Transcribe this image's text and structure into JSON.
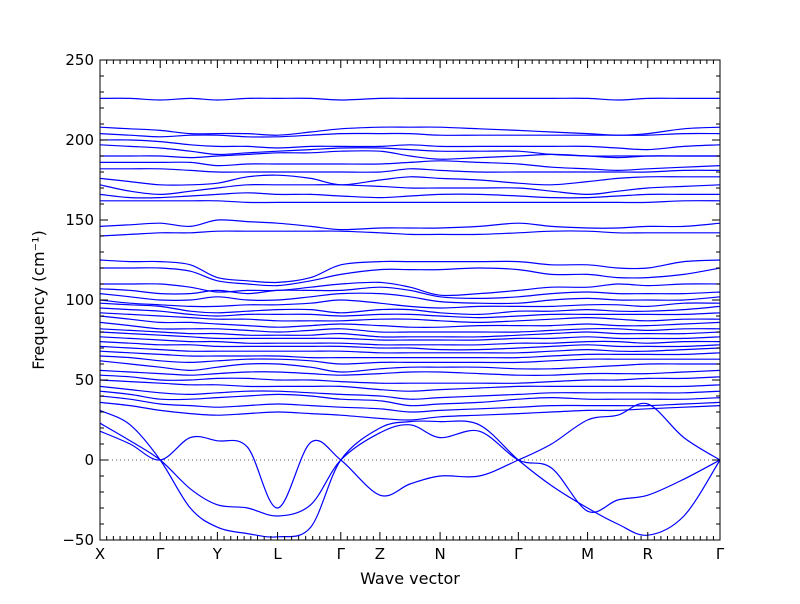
{
  "chart_data": {
    "type": "line",
    "title": "",
    "xlabel": "Wave vector",
    "ylabel": "Frequency (cm⁻¹)",
    "ylim": [
      -50,
      250
    ],
    "yticks": [
      -50,
      0,
      50,
      100,
      150,
      200,
      250
    ],
    "grid": false,
    "legend": "none",
    "line_color": "#0000ff",
    "zero_line_color": "#5a5a5a",
    "x_path": [
      {
        "label": "X",
        "position": 0.0
      },
      {
        "label": "Γ",
        "position": 1.0
      },
      {
        "label": "Y",
        "position": 1.95
      },
      {
        "label": "L",
        "position": 2.95
      },
      {
        "label": "Γ",
        "position": 4.0
      },
      {
        "label": "Z",
        "position": 4.65
      },
      {
        "label": "N",
        "position": 5.65
      },
      {
        "label": "Γ",
        "position": 6.95
      },
      {
        "label": "M",
        "position": 8.1
      },
      {
        "label": "R",
        "position": 9.1
      },
      {
        "label": "Γ",
        "position": 10.3
      }
    ],
    "x_samples": [
      0,
      0.5,
      1.0,
      1.5,
      1.95,
      2.45,
      2.95,
      3.5,
      4.0,
      4.65,
      5.15,
      5.65,
      6.3,
      6.95,
      7.5,
      8.1,
      8.6,
      9.1,
      9.7,
      10.3
    ],
    "acoustic_branches": [
      {
        "values": [
          31,
          22,
          0,
          -30,
          -42,
          -46,
          -48,
          -42,
          0,
          20,
          24,
          24,
          22,
          0,
          -16,
          -30,
          -40,
          -47,
          -35,
          0
        ]
      },
      {
        "values": [
          23,
          12,
          0,
          -18,
          -28,
          -30,
          -35,
          -28,
          0,
          17,
          22,
          14,
          18,
          0,
          -5,
          -32,
          -25,
          -22,
          -12,
          0
        ]
      },
      {
        "values": [
          18,
          10,
          0,
          14,
          12,
          8,
          -30,
          11,
          0,
          -22,
          -15,
          -10,
          -10,
          0,
          10,
          25,
          28,
          35,
          14,
          0
        ]
      }
    ],
    "optical_bands": [
      {
        "values": [
          226,
          226,
          225,
          226,
          225,
          226,
          226,
          226,
          225,
          226,
          226,
          226,
          226,
          226,
          226,
          226,
          225,
          226,
          226,
          226
        ]
      },
      {
        "values": [
          208,
          207,
          206,
          204,
          204,
          204,
          203,
          205,
          207,
          208,
          208,
          208,
          207,
          206,
          205,
          204,
          203,
          204,
          207,
          208
        ]
      },
      {
        "values": [
          204,
          203,
          202,
          203,
          203,
          202,
          202,
          203,
          204,
          204,
          204,
          203,
          203,
          203,
          203,
          203,
          203,
          203,
          204,
          204
        ]
      },
      {
        "values": [
          200,
          200,
          199,
          197,
          196,
          196,
          195,
          196,
          196,
          196,
          197,
          196,
          196,
          196,
          196,
          196,
          195,
          194,
          196,
          197
        ]
      },
      {
        "values": [
          197,
          196,
          195,
          193,
          191,
          192,
          193,
          194,
          195,
          195,
          194,
          193,
          193,
          193,
          191,
          190,
          190,
          190,
          190,
          190
        ]
      },
      {
        "values": [
          190,
          190,
          190,
          189,
          190,
          191,
          192,
          192,
          193,
          193,
          190,
          188,
          189,
          190,
          191,
          190,
          189,
          190,
          190,
          190
        ]
      },
      {
        "values": [
          186,
          186,
          186,
          186,
          184,
          185,
          185,
          185,
          185,
          185,
          186,
          187,
          186,
          185,
          183,
          182,
          181,
          182,
          183,
          184
        ]
      },
      {
        "values": [
          182,
          182,
          182,
          181,
          180,
          180,
          180,
          180,
          180,
          180,
          182,
          181,
          180,
          180,
          180,
          180,
          180,
          180,
          181,
          181
        ]
      },
      {
        "values": [
          176,
          174,
          172,
          172,
          173,
          177,
          178,
          176,
          172,
          175,
          177,
          176,
          175,
          173,
          172,
          174,
          176,
          177,
          177,
          177
        ]
      },
      {
        "values": [
          172,
          168,
          166,
          168,
          170,
          172,
          172,
          172,
          172,
          171,
          170,
          170,
          170,
          170,
          168,
          166,
          168,
          170,
          171,
          172
        ]
      },
      {
        "values": [
          166,
          164,
          164,
          165,
          166,
          167,
          166,
          166,
          165,
          164,
          165,
          166,
          166,
          165,
          164,
          164,
          165,
          166,
          166,
          166
        ]
      },
      {
        "values": [
          162,
          162,
          162,
          162,
          162,
          161,
          161,
          161,
          161,
          161,
          161,
          161,
          161,
          161,
          161,
          161,
          161,
          161,
          162,
          162
        ]
      },
      {
        "values": [
          146,
          147,
          148,
          146,
          150,
          149,
          148,
          146,
          144,
          145,
          145,
          145,
          146,
          148,
          146,
          145,
          145,
          146,
          146,
          148
        ]
      },
      {
        "values": [
          140,
          141,
          142,
          142,
          143,
          143,
          143,
          143,
          143,
          142,
          141,
          141,
          141,
          142,
          143,
          143,
          142,
          142,
          142,
          142
        ]
      },
      {
        "values": [
          125,
          124,
          124,
          122,
          114,
          112,
          111,
          114,
          122,
          124,
          124,
          124,
          124,
          124,
          122,
          122,
          120,
          120,
          124,
          125
        ]
      },
      {
        "values": [
          120,
          120,
          120,
          118,
          112,
          110,
          109,
          112,
          116,
          119,
          119,
          119,
          120,
          119,
          116,
          116,
          114,
          114,
          116,
          120
        ]
      },
      {
        "values": [
          110,
          110,
          110,
          108,
          105,
          106,
          106,
          108,
          110,
          111,
          108,
          103,
          104,
          106,
          108,
          108,
          110,
          109,
          110,
          110
        ]
      },
      {
        "values": [
          107,
          106,
          104,
          104,
          106,
          104,
          106,
          106,
          106,
          108,
          106,
          102,
          101,
          102,
          104,
          105,
          104,
          104,
          104,
          105
        ]
      },
      {
        "values": [
          104,
          102,
          100,
          100,
          102,
          100,
          100,
          102,
          104,
          104,
          102,
          99,
          98,
          98,
          100,
          101,
          100,
          100,
          100,
          102
        ]
      },
      {
        "values": [
          100,
          98,
          97,
          96,
          96,
          97,
          97,
          98,
          100,
          98,
          96,
          95,
          96,
          96,
          96,
          97,
          97,
          96,
          98,
          98
        ]
      },
      {
        "values": [
          98,
          97,
          96,
          93,
          92,
          93,
          94,
          94,
          92,
          94,
          94,
          92,
          91,
          93,
          93,
          94,
          93,
          93,
          94,
          96
        ]
      },
      {
        "values": [
          95,
          94,
          93,
          91,
          90,
          91,
          91,
          91,
          90,
          91,
          91,
          90,
          89,
          90,
          91,
          91,
          91,
          91,
          91,
          92
        ]
      },
      {
        "values": [
          92,
          91,
          90,
          89,
          88,
          88,
          87,
          87,
          87,
          88,
          88,
          87,
          86,
          87,
          88,
          89,
          88,
          87,
          88,
          88
        ]
      },
      {
        "values": [
          90,
          88,
          86,
          86,
          85,
          84,
          83,
          84,
          85,
          84,
          83,
          83,
          84,
          84,
          84,
          85,
          84,
          84,
          85,
          86
        ]
      },
      {
        "values": [
          86,
          84,
          82,
          82,
          82,
          81,
          80,
          81,
          82,
          80,
          80,
          80,
          80,
          80,
          81,
          82,
          82,
          81,
          82,
          82
        ]
      },
      {
        "values": [
          82,
          81,
          80,
          79,
          79,
          78,
          78,
          78,
          79,
          77,
          77,
          77,
          77,
          78,
          79,
          80,
          79,
          79,
          79,
          80
        ]
      },
      {
        "values": [
          80,
          79,
          78,
          77,
          76,
          76,
          76,
          76,
          76,
          75,
          75,
          75,
          75,
          76,
          76,
          77,
          76,
          76,
          76,
          77
        ]
      },
      {
        "values": [
          77,
          76,
          75,
          74,
          74,
          73,
          73,
          73,
          73,
          72,
          72,
          72,
          72,
          73,
          73,
          74,
          74,
          73,
          74,
          74
        ]
      },
      {
        "values": [
          74,
          73,
          72,
          72,
          71,
          71,
          71,
          71,
          71,
          70,
          70,
          69,
          69,
          70,
          71,
          72,
          71,
          71,
          71,
          72
        ]
      },
      {
        "values": [
          71,
          70,
          69,
          68,
          68,
          68,
          68,
          68,
          68,
          67,
          67,
          67,
          67,
          67,
          68,
          69,
          68,
          68,
          69,
          70
        ]
      },
      {
        "values": [
          68,
          67,
          66,
          65,
          65,
          65,
          65,
          64,
          64,
          64,
          64,
          64,
          64,
          64,
          65,
          66,
          66,
          66,
          66,
          67
        ]
      },
      {
        "values": [
          65,
          64,
          62,
          61,
          62,
          63,
          63,
          62,
          60,
          61,
          61,
          61,
          61,
          61,
          62,
          63,
          63,
          63,
          63,
          63
        ]
      },
      {
        "values": [
          62,
          60,
          58,
          56,
          58,
          60,
          60,
          58,
          55,
          57,
          58,
          58,
          58,
          57,
          57,
          58,
          59,
          60,
          60,
          60
        ]
      },
      {
        "values": [
          56,
          55,
          54,
          53,
          54,
          55,
          55,
          54,
          53,
          54,
          55,
          55,
          54,
          53,
          53,
          54,
          54,
          54,
          55,
          56
        ]
      },
      {
        "values": [
          53,
          52,
          50,
          50,
          51,
          51,
          50,
          50,
          49,
          48,
          48,
          48,
          48,
          48,
          49,
          50,
          50,
          51,
          51,
          52
        ]
      },
      {
        "values": [
          50,
          49,
          48,
          47,
          47,
          46,
          46,
          46,
          46,
          44,
          43,
          44,
          45,
          46,
          46,
          46,
          46,
          46,
          46,
          47
        ]
      },
      {
        "values": [
          46,
          44,
          42,
          41,
          42,
          43,
          43,
          42,
          41,
          40,
          38,
          39,
          40,
          41,
          42,
          42,
          42,
          42,
          42,
          43
        ]
      },
      {
        "values": [
          43,
          41,
          38,
          38,
          39,
          40,
          41,
          40,
          38,
          37,
          34,
          35,
          36,
          38,
          39,
          38,
          38,
          38,
          38,
          39
        ]
      },
      {
        "values": [
          40,
          38,
          35,
          34,
          33,
          34,
          35,
          34,
          33,
          32,
          30,
          31,
          32,
          33,
          34,
          34,
          34,
          34,
          35,
          36
        ]
      },
      {
        "values": [
          36,
          34,
          31,
          29,
          28,
          29,
          30,
          29,
          28,
          26,
          25,
          27,
          28,
          29,
          30,
          31,
          31,
          32,
          33,
          34
        ]
      }
    ]
  }
}
